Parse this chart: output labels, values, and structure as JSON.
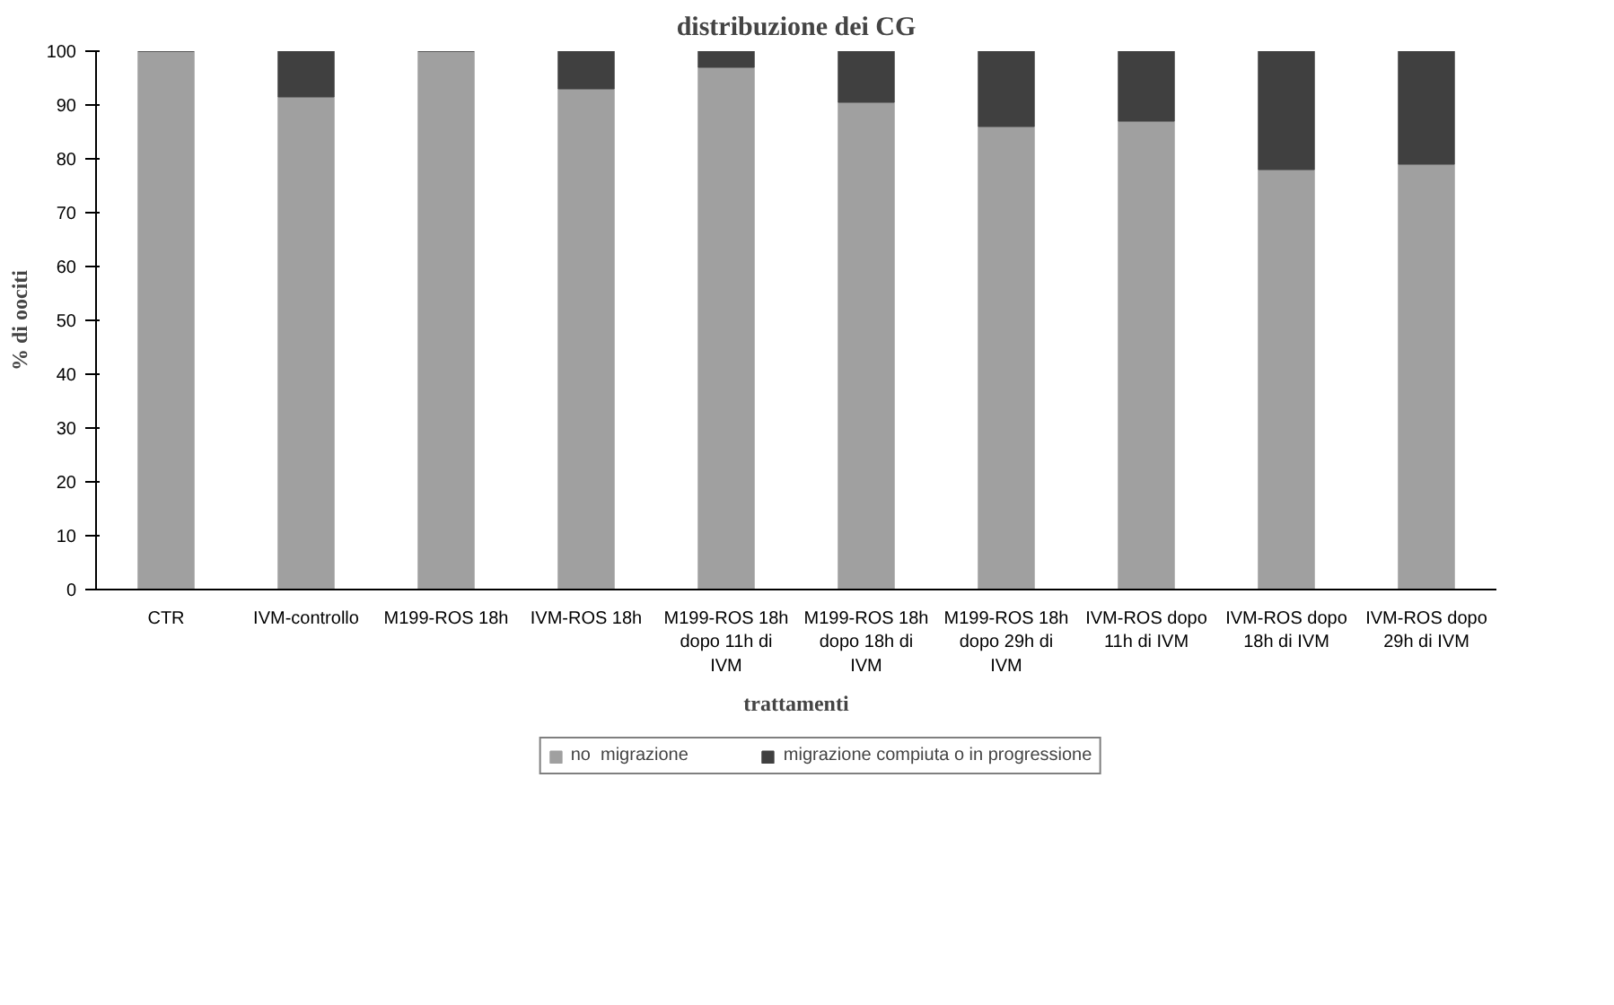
{
  "chart_data": {
    "type": "bar",
    "stacked": true,
    "title": "distribuzione dei CG",
    "xlabel": "trattamenti",
    "ylabel": "% di oociti",
    "categories": [
      "CTR",
      "IVM-controllo",
      "M199-ROS 18h",
      "IVM-ROS 18h",
      "M199-ROS 18h dopo 11h di IVM",
      "M199-ROS 18h dopo 18h di IVM",
      "M199-ROS 18h dopo 29h di IVM",
      "IVM-ROS dopo 11h di IVM",
      "IVM-ROS dopo 18h di IVM",
      "IVM-ROS dopo 29h di IVM"
    ],
    "series": [
      {
        "name": "no  migrazione",
        "color": "#a0a0a0",
        "values": [
          100,
          91.5,
          100,
          93,
          97,
          90.5,
          86,
          87,
          78,
          79
        ]
      },
      {
        "name": "migrazione compiuta o in progressione",
        "color": "#404040",
        "values": [
          0,
          8.5,
          0,
          7,
          3,
          9.5,
          14,
          13,
          22,
          21
        ]
      }
    ],
    "ylim": [
      0,
      100
    ],
    "yticks": [
      0,
      10,
      20,
      30,
      40,
      50,
      60,
      70,
      80,
      90,
      100
    ],
    "legend": "bottom"
  }
}
